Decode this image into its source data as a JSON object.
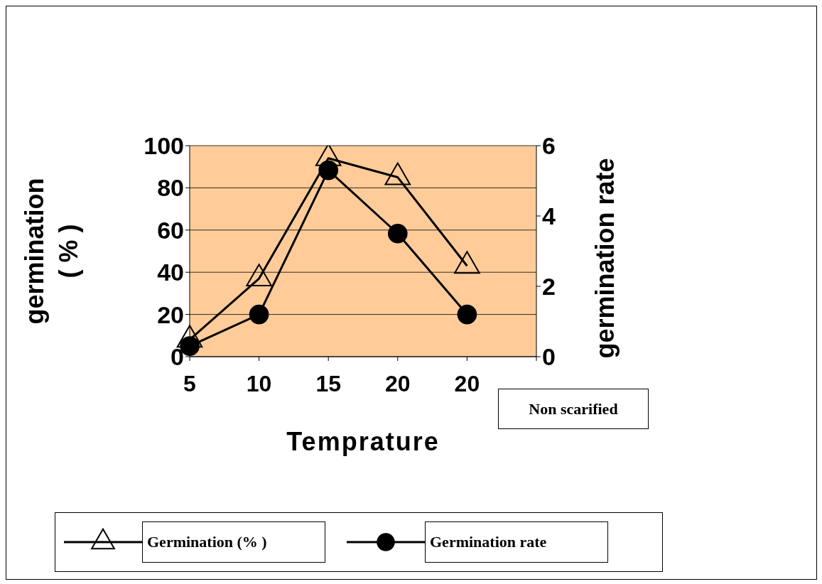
{
  "chart_data": {
    "type": "line",
    "xlabel": "Temprature",
    "ylabel": "germination ( % )",
    "y2label": "germination rate",
    "categories": [
      "5",
      "10",
      "15",
      "20",
      "20",
      null
    ],
    "series": [
      {
        "name": "Germination (% )",
        "color": "#000000",
        "marker": "triangle",
        "values": [
          8,
          37,
          94,
          85,
          43,
          null
        ]
      },
      {
        "name": "Germination rate",
        "color": "#000000",
        "marker": "circle",
        "axis": "y2",
        "values": [
          0.3,
          1.2,
          5.3,
          3.5,
          1.2,
          null
        ]
      }
    ],
    "ylim": [
      0,
      100
    ],
    "yticks": [
      0,
      20,
      40,
      60,
      80,
      100
    ],
    "y2lim": [
      0,
      6
    ],
    "y2ticks": [
      0,
      2,
      4,
      6
    ],
    "grid": "y",
    "legend": "bottom",
    "line_style": "solid",
    "annotations": [
      "Non scarified"
    ]
  }
}
